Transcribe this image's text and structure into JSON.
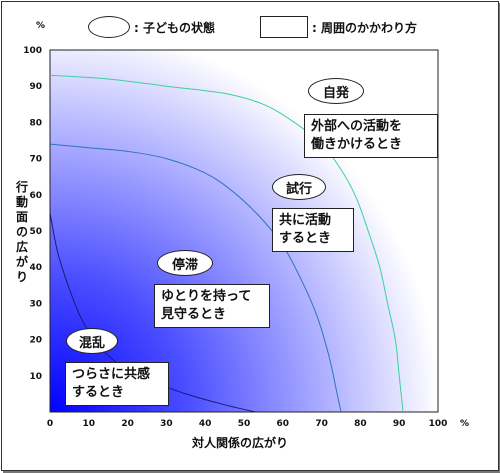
{
  "legend": {
    "child_state": ": 子どもの状態",
    "surroundings": ": 周囲のかかわり方"
  },
  "axes": {
    "y_label": "行動面の広がり",
    "x_label": "対人関係の広がり",
    "y_unit": "%",
    "x_unit": "%"
  },
  "chart_data": {
    "type": "line",
    "xlim": [
      0,
      100
    ],
    "ylim": [
      0,
      100
    ],
    "x_ticks": [
      0,
      10,
      20,
      30,
      40,
      50,
      60,
      70,
      80,
      90,
      100
    ],
    "y_ticks": [
      10,
      20,
      30,
      40,
      50,
      60,
      70,
      80,
      90,
      100
    ],
    "grid": false,
    "series": [
      {
        "points": [
          [
            0,
            55
          ],
          [
            2,
            44
          ],
          [
            5,
            34
          ],
          [
            8,
            26
          ],
          [
            12,
            19
          ],
          [
            18,
            13
          ],
          [
            25,
            9
          ],
          [
            35,
            5
          ],
          [
            45,
            2
          ],
          [
            53,
            0
          ]
        ],
        "color": "#1a1a7a"
      },
      {
        "points": [
          [
            0,
            74
          ],
          [
            10,
            73
          ],
          [
            20,
            72
          ],
          [
            30,
            70
          ],
          [
            40,
            66
          ],
          [
            47,
            61
          ],
          [
            54,
            54
          ],
          [
            60,
            46
          ],
          [
            65,
            36
          ],
          [
            69,
            26
          ],
          [
            72,
            15
          ],
          [
            74,
            5
          ],
          [
            75,
            0
          ]
        ],
        "color": "#2f73c0"
      },
      {
        "points": [
          [
            0,
            93
          ],
          [
            15,
            92
          ],
          [
            30,
            90
          ],
          [
            45,
            88
          ],
          [
            55,
            85
          ],
          [
            63,
            80
          ],
          [
            70,
            74
          ],
          [
            75,
            67
          ],
          [
            79,
            59
          ],
          [
            82,
            50
          ],
          [
            85,
            40
          ],
          [
            87,
            30
          ],
          [
            89,
            20
          ],
          [
            90,
            10
          ],
          [
            91,
            0
          ]
        ],
        "color": "#3fcf9a"
      }
    ],
    "states": [
      {
        "label": "混乱",
        "support": [
          "つらさに共感",
          "するとき"
        ]
      },
      {
        "label": "停滞",
        "support": [
          "ゆとりを持って",
          "見守るとき"
        ]
      },
      {
        "label": "試行",
        "support": [
          "共に活動",
          "するとき"
        ]
      },
      {
        "label": "自発",
        "support": [
          "外部への活動を",
          "働きかけるとき"
        ]
      }
    ],
    "colors": {
      "gradient_dark": "#0000ff",
      "gradient_light": "#ffffff"
    }
  }
}
